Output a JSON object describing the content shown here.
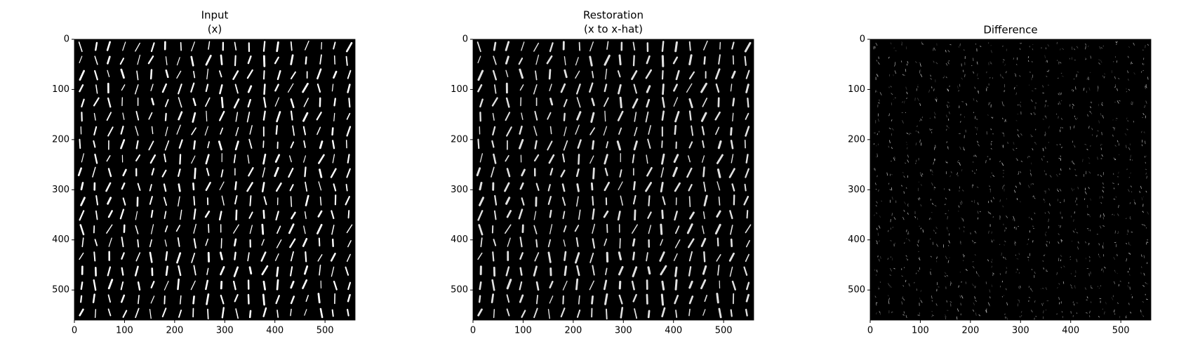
{
  "chart_data": [
    {
      "type": "image",
      "title": "Input",
      "subtitle": "(x)",
      "xlim": [
        0,
        560
      ],
      "ylim": [
        560,
        0
      ],
      "xticks": [
        0,
        100,
        200,
        300,
        400,
        500
      ],
      "yticks": [
        0,
        100,
        200,
        300,
        400,
        500
      ]
    },
    {
      "type": "image",
      "title": "Restoration",
      "subtitle": "(x to x-hat)",
      "xlim": [
        0,
        560
      ],
      "ylim": [
        560,
        0
      ],
      "xticks": [
        0,
        100,
        200,
        300,
        400,
        500
      ],
      "yticks": [
        0,
        100,
        200,
        300,
        400,
        500
      ]
    },
    {
      "type": "image",
      "title": "Difference",
      "xlim": [
        0,
        560
      ],
      "ylim": [
        560,
        0
      ],
      "xticks": [
        0,
        100,
        200,
        300,
        400,
        500
      ],
      "yticks": [
        0,
        100,
        200,
        300,
        400,
        500
      ]
    }
  ]
}
